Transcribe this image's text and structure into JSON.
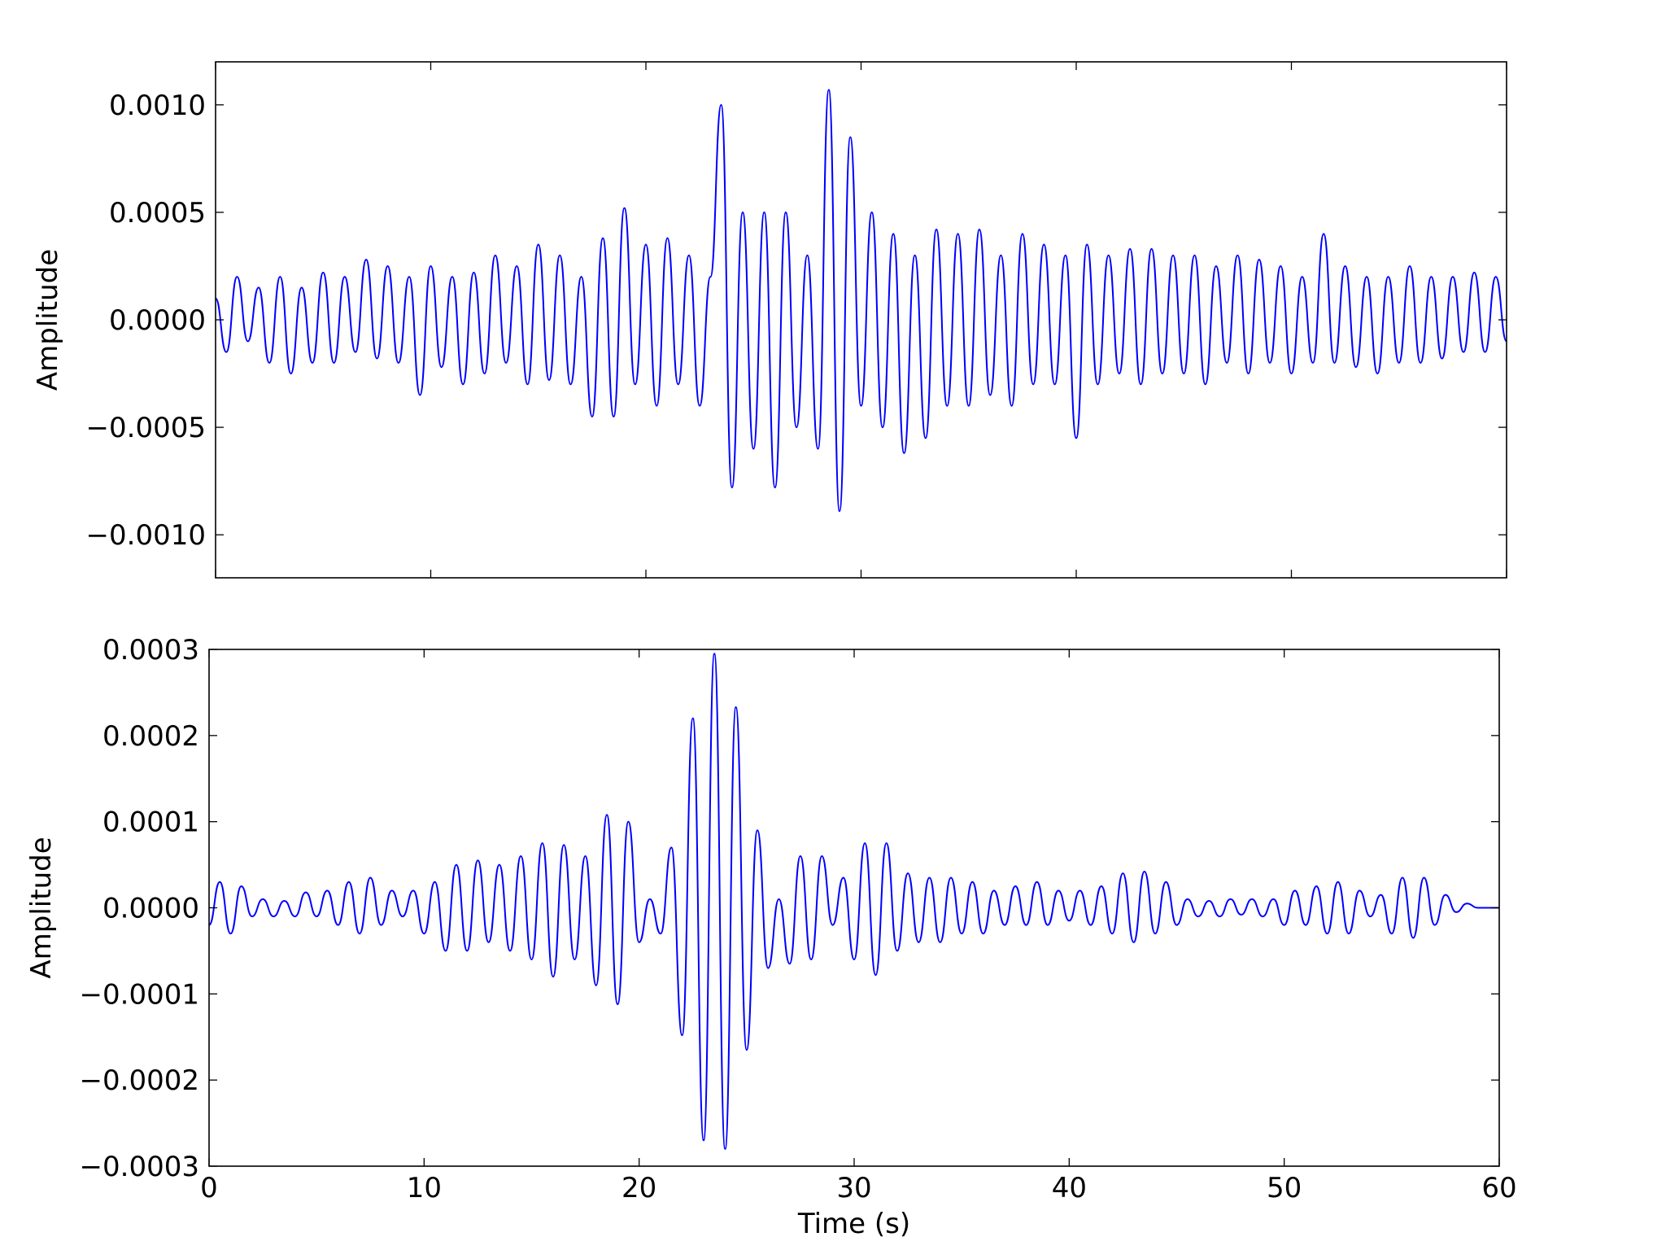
{
  "chart_data": [
    {
      "type": "line",
      "ylabel": "Amplitude",
      "color": "#0000ff",
      "x": [
        0,
        0.5,
        1,
        1.5,
        2,
        2.5,
        3,
        3.5,
        4,
        4.5,
        5,
        5.5,
        6,
        6.5,
        7,
        7.5,
        8,
        8.5,
        9,
        9.5,
        10,
        10.5,
        11,
        11.5,
        12,
        12.5,
        13,
        13.5,
        14,
        14.5,
        15,
        15.5,
        16,
        16.5,
        17,
        17.5,
        18,
        18.5,
        19,
        19.5,
        20,
        20.5,
        21,
        21.5,
        22,
        22.5,
        23,
        23.5,
        24,
        24.5,
        25,
        25.5,
        26,
        26.5,
        27,
        27.5,
        28,
        28.5,
        29,
        29.5,
        30,
        30.5,
        31,
        31.5,
        32,
        32.5,
        33,
        33.5,
        34,
        34.5,
        35,
        35.5,
        36,
        36.5,
        37,
        37.5,
        38,
        38.5,
        39,
        39.5,
        40,
        40.5,
        41,
        41.5,
        42,
        42.5,
        43,
        43.5,
        44,
        44.5,
        45,
        45.5,
        46,
        46.5,
        47,
        47.5,
        48,
        48.5,
        49,
        49.5,
        50,
        50.5,
        51,
        51.5,
        52,
        52.5,
        53,
        53.5,
        54,
        54.5,
        55,
        55.5,
        56,
        56.5,
        57,
        57.5,
        58,
        58.5,
        59,
        59.5,
        60
      ],
      "values": [
        0.0001,
        -0.00015,
        0.0002,
        -0.0001,
        0.00015,
        -0.0002,
        0.0002,
        -0.00025,
        0.00015,
        -0.0002,
        0.00022,
        -0.0002,
        0.0002,
        -0.00015,
        0.00028,
        -0.00018,
        0.00025,
        -0.0002,
        0.0002,
        -0.00035,
        0.00025,
        -0.00022,
        0.0002,
        -0.0003,
        0.00022,
        -0.00025,
        0.0003,
        -0.0002,
        0.00025,
        -0.0003,
        0.00035,
        -0.00028,
        0.0003,
        -0.0003,
        0.0002,
        -0.00045,
        0.00038,
        -0.00045,
        0.00052,
        -0.0003,
        0.00035,
        -0.0004,
        0.00038,
        -0.0003,
        0.0003,
        -0.0004,
        0.0002,
        0.001,
        -0.00078,
        0.0005,
        -0.0006,
        0.0005,
        -0.00078,
        0.0005,
        -0.0005,
        0.0003,
        -0.0006,
        0.00107,
        -0.00089,
        0.00085,
        -0.0004,
        0.0005,
        -0.0005,
        0.0004,
        -0.00062,
        0.0003,
        -0.00055,
        0.00042,
        -0.0004,
        0.0004,
        -0.0004,
        0.00042,
        -0.00035,
        0.0003,
        -0.0004,
        0.0004,
        -0.0003,
        0.00035,
        -0.0003,
        0.0003,
        -0.00055,
        0.00035,
        -0.0003,
        0.0003,
        -0.00025,
        0.00033,
        -0.0003,
        0.00033,
        -0.00025,
        0.0003,
        -0.00025,
        0.0003,
        -0.0003,
        0.00025,
        -0.0002,
        0.0003,
        -0.00025,
        0.00028,
        -0.0002,
        0.00025,
        -0.00025,
        0.0002,
        -0.0002,
        0.0004,
        -0.0002,
        0.00025,
        -0.00022,
        0.0002,
        -0.00025,
        0.0002,
        -0.0002,
        0.00025,
        -0.0002,
        0.0002,
        -0.00018,
        0.0002,
        -0.00015,
        0.00022,
        -0.00015,
        0.0002,
        -0.0001
      ],
      "xlim": [
        0,
        60
      ],
      "xticks": [
        0,
        10,
        20,
        30,
        40,
        50,
        60
      ],
      "ylim": [
        -0.0012,
        0.0012
      ],
      "yticks": [
        {
          "value": -0.001,
          "label": "−0.0010"
        },
        {
          "value": -0.0005,
          "label": "−0.0005"
        },
        {
          "value": 0,
          "label": "0.0000"
        },
        {
          "value": 0.0005,
          "label": "0.0005"
        },
        {
          "value": 0.001,
          "label": "0.0010"
        }
      ]
    },
    {
      "type": "line",
      "ylabel": "Amplitude",
      "xlabel": "Time (s)",
      "color": "#0000ff",
      "x": [
        0,
        0.5,
        1,
        1.5,
        2,
        2.5,
        3,
        3.5,
        4,
        4.5,
        5,
        5.5,
        6,
        6.5,
        7,
        7.5,
        8,
        8.5,
        9,
        9.5,
        10,
        10.5,
        11,
        11.5,
        12,
        12.5,
        13,
        13.5,
        14,
        14.5,
        15,
        15.5,
        16,
        16.5,
        17,
        17.5,
        18,
        18.5,
        19,
        19.5,
        20,
        20.5,
        21,
        21.5,
        22,
        22.5,
        23,
        23.5,
        24,
        24.5,
        25,
        25.5,
        26,
        26.5,
        27,
        27.5,
        28,
        28.5,
        29,
        29.5,
        30,
        30.5,
        31,
        31.5,
        32,
        32.5,
        33,
        33.5,
        34,
        34.5,
        35,
        35.5,
        36,
        36.5,
        37,
        37.5,
        38,
        38.5,
        39,
        39.5,
        40,
        40.5,
        41,
        41.5,
        42,
        42.5,
        43,
        43.5,
        44,
        44.5,
        45,
        45.5,
        46,
        46.5,
        47,
        47.5,
        48,
        48.5,
        49,
        49.5,
        50,
        50.5,
        51,
        51.5,
        52,
        52.5,
        53,
        53.5,
        54,
        54.5,
        55,
        55.5,
        56,
        56.5,
        57,
        57.5,
        58,
        58.5,
        59,
        59.5,
        60
      ],
      "values": [
        -2e-05,
        3e-05,
        -3e-05,
        2.5e-05,
        -1e-05,
        1e-05,
        -1e-05,
        8e-06,
        -1e-05,
        1.8e-05,
        -1e-05,
        2e-05,
        -2e-05,
        3e-05,
        -3e-05,
        3.5e-05,
        -2e-05,
        2e-05,
        -1e-05,
        2e-05,
        -3e-05,
        3e-05,
        -5e-05,
        5e-05,
        -5e-05,
        5.5e-05,
        -4e-05,
        5e-05,
        -5e-05,
        6e-05,
        -6e-05,
        7.5e-05,
        -8e-05,
        7.3e-05,
        -6e-05,
        6e-05,
        -9e-05,
        0.000108,
        -0.000112,
        0.0001,
        -4e-05,
        1e-05,
        -3e-05,
        7e-05,
        -0.000148,
        0.00022,
        -0.00027,
        0.000295,
        -0.00028,
        0.000233,
        -0.000165,
        9e-05,
        -7e-05,
        1e-05,
        -6.5e-05,
        6e-05,
        -6e-05,
        6e-05,
        -2e-05,
        3.5e-05,
        -6e-05,
        7.5e-05,
        -7.8e-05,
        7.5e-05,
        -5e-05,
        4e-05,
        -4e-05,
        3.5e-05,
        -4e-05,
        3.5e-05,
        -3e-05,
        3e-05,
        -3e-05,
        2e-05,
        -2e-05,
        2.5e-05,
        -2e-05,
        3e-05,
        -2e-05,
        2e-05,
        -1.5e-05,
        2e-05,
        -2e-05,
        2.5e-05,
        -3e-05,
        4e-05,
        -4e-05,
        4.2e-05,
        -3e-05,
        3e-05,
        -2e-05,
        1e-05,
        -1e-05,
        8e-06,
        -1e-05,
        1e-05,
        -8e-06,
        1e-05,
        -1e-05,
        1e-05,
        -2e-05,
        2e-05,
        -2e-05,
        2.5e-05,
        -3e-05,
        3e-05,
        -3e-05,
        2e-05,
        -1e-05,
        1.5e-05,
        -3e-05,
        3.5e-05,
        -3.5e-05,
        3.5e-05,
        -2e-05,
        1.5e-05,
        -5e-06,
        5e-06,
        0,
        0,
        0
      ],
      "xlim": [
        0,
        60
      ],
      "xticks": [
        0,
        10,
        20,
        30,
        40,
        50,
        60
      ],
      "ylim": [
        -0.0003,
        0.0003
      ],
      "yticks": [
        {
          "value": -0.0003,
          "label": "−0.0003"
        },
        {
          "value": -0.0002,
          "label": "−0.0002"
        },
        {
          "value": -0.0001,
          "label": "−0.0001"
        },
        {
          "value": 0,
          "label": "0.0000"
        },
        {
          "value": 0.0001,
          "label": "0.0001"
        },
        {
          "value": 0.0002,
          "label": "0.0002"
        },
        {
          "value": 0.0003,
          "label": "0.0003"
        }
      ]
    }
  ]
}
